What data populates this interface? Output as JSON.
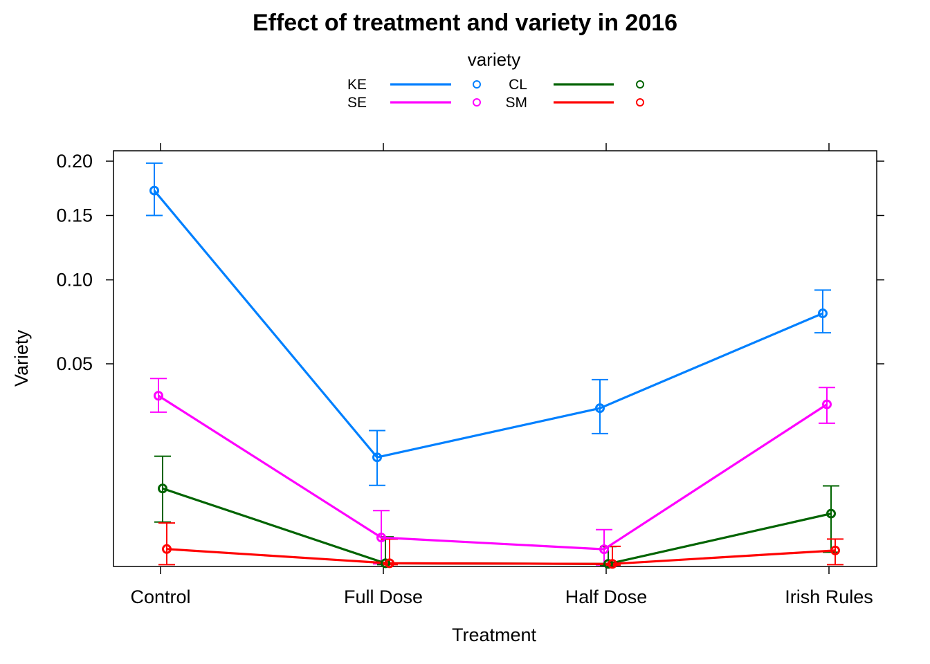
{
  "chart_data": {
    "type": "line",
    "title": "Effect of treatment and variety in 2016",
    "xlabel": "Treatment",
    "ylabel": "Variety",
    "categories": [
      "Control",
      "Full Dose",
      "Half Dose",
      "Irish Rules"
    ],
    "y_scale": "sqrt",
    "ylim": [
      0,
      0.225
    ],
    "y_ticks": [
      0.05,
      0.1,
      0.15,
      0.2
    ],
    "y_tick_labels": [
      "0.05",
      "0.10",
      "0.15",
      "0.20"
    ],
    "grid": false,
    "legend": {
      "title": "variety",
      "placement": "top"
    },
    "series": [
      {
        "name": "KE",
        "color": "#0080ff",
        "values": [
          0.172,
          0.0145,
          0.0305,
          0.078
        ],
        "lower": [
          0.15,
          0.008,
          0.0215,
          0.0665
        ],
        "upper": [
          0.198,
          0.0225,
          0.0425,
          0.093
        ]
      },
      {
        "name": "SE",
        "color": "#ff00ff",
        "values": [
          0.0355,
          0.00102,
          0.00036,
          0.032
        ],
        "lower": [
          0.029,
          8e-06,
          3e-06,
          0.025
        ],
        "upper": [
          0.043,
          0.0038,
          0.00165,
          0.039
        ]
      },
      {
        "name": "CL",
        "color": "#006400",
        "values": [
          0.0074,
          1.25e-05,
          8e-06,
          0.0034
        ],
        "lower": [
          0.0024,
          4e-06,
          2e-06,
          0.000248
        ],
        "upper": [
          0.0148,
          0.00107,
          0.00048,
          0.0079
        ]
      },
      {
        "name": "SM",
        "color": "#ff0000",
        "values": [
          0.00037,
          1.24e-05,
          8e-06,
          0.000312
        ],
        "lower": [
          4e-06,
          4e-06,
          2e-06,
          4e-06
        ],
        "upper": [
          0.0023,
          0.000908,
          0.000492,
          0.000916
        ]
      }
    ]
  }
}
